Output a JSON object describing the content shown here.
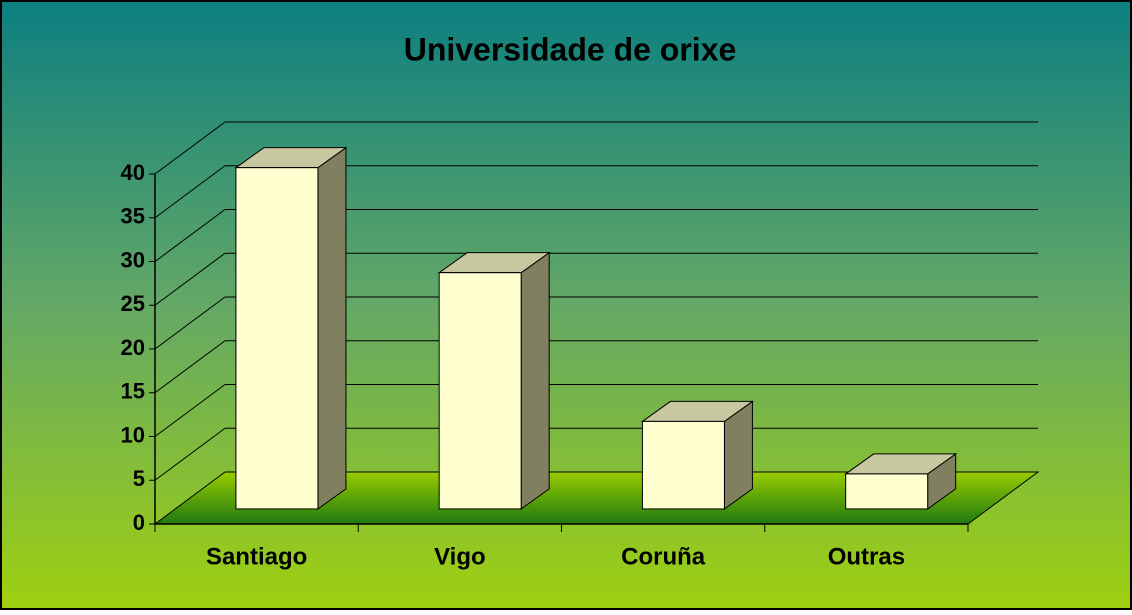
{
  "chart_data": {
    "type": "bar3d",
    "title": "Universidade de orixe",
    "categories": [
      "Santiago",
      "Vigo",
      "Coruña",
      "Outras"
    ],
    "values": [
      39,
      27,
      10,
      4
    ],
    "color": "#ffffd0",
    "ylim": [
      0,
      40
    ],
    "yticks": [
      0,
      5,
      10,
      15,
      20,
      25,
      30,
      35,
      40
    ],
    "grid": true
  }
}
